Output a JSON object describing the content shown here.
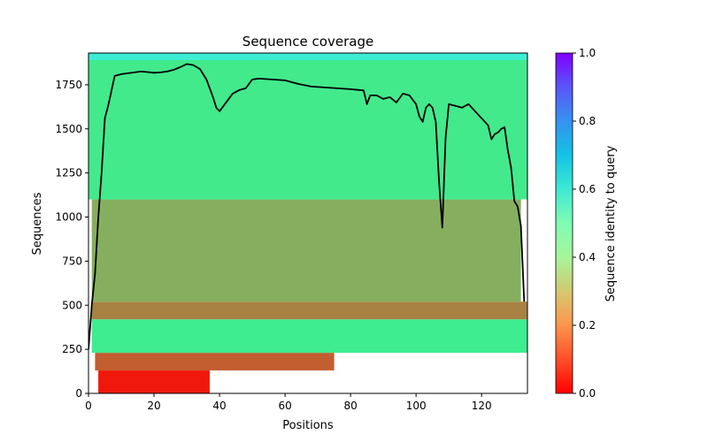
{
  "chart_data": {
    "type": "heatmap",
    "title": "Sequence coverage",
    "xlabel": "Positions",
    "ylabel": "Sequences",
    "xlim": [
      0,
      134
    ],
    "ylim": [
      0,
      1930
    ],
    "x_ticks": [
      0,
      20,
      40,
      60,
      80,
      100,
      120
    ],
    "y_ticks": [
      0,
      250,
      500,
      750,
      1000,
      1250,
      1500,
      1750
    ],
    "x_tick_labels": [
      "0",
      "20",
      "40",
      "60",
      "80",
      "100",
      "120"
    ],
    "y_tick_labels": [
      "0",
      "250",
      "500",
      "750",
      "1000",
      "1250",
      "1500",
      "1750"
    ],
    "colorbar": {
      "label": "Sequence identity to query",
      "range": [
        0.0,
        1.0
      ],
      "ticks": [
        0.0,
        0.2,
        0.4,
        0.6,
        0.8,
        1.0
      ],
      "tick_labels": [
        "0.0",
        "0.2",
        "0.4",
        "0.6",
        "0.8",
        "1.0"
      ],
      "colormap": "rainbow_r"
    },
    "identity_bands": [
      {
        "seq_range": [
          0,
          130
        ],
        "x_range": [
          3,
          37
        ],
        "identity": 0.03
      },
      {
        "seq_range": [
          130,
          230
        ],
        "x_range": [
          2,
          75
        ],
        "identity": 0.12
      },
      {
        "seq_range": [
          230,
          420
        ],
        "x_range": [
          1,
          134
        ],
        "identity": 0.38
      },
      {
        "seq_range": [
          420,
          520
        ],
        "x_range": [
          1,
          134
        ],
        "identity": 0.17
      },
      {
        "seq_range": [
          520,
          1100
        ],
        "x_range": [
          1,
          132
        ],
        "identity": 0.24
      },
      {
        "seq_range": [
          1100,
          1890
        ],
        "x_range": [
          0,
          134
        ],
        "identity": 0.37
      },
      {
        "seq_range": [
          1890,
          1930
        ],
        "x_range": [
          0,
          134
        ],
        "identity": 0.62
      }
    ],
    "series": [
      {
        "x": [
          0,
          1,
          2,
          3,
          4,
          5,
          6,
          8,
          10,
          12,
          14,
          16,
          18,
          20,
          22,
          24,
          26,
          28,
          30,
          32,
          34,
          36,
          38,
          39,
          40,
          42,
          44,
          46,
          48,
          50,
          52,
          56,
          60,
          64,
          68,
          72,
          76,
          80,
          84,
          85,
          86,
          88,
          90,
          92,
          94,
          96,
          98,
          100,
          101,
          102,
          103,
          104,
          105,
          106,
          107,
          108,
          109,
          110,
          112,
          114,
          116,
          118,
          120,
          122,
          123,
          124,
          125,
          126,
          127,
          128,
          129,
          130,
          131,
          132,
          133
        ],
        "values": [
          250,
          500,
          680,
          1000,
          1250,
          1560,
          1630,
          1800,
          1810,
          1815,
          1820,
          1825,
          1822,
          1818,
          1820,
          1825,
          1835,
          1850,
          1868,
          1862,
          1840,
          1780,
          1680,
          1620,
          1600,
          1650,
          1700,
          1720,
          1730,
          1780,
          1785,
          1780,
          1775,
          1755,
          1740,
          1735,
          1730,
          1725,
          1718,
          1640,
          1690,
          1690,
          1670,
          1680,
          1650,
          1700,
          1690,
          1640,
          1570,
          1540,
          1620,
          1640,
          1620,
          1540,
          1200,
          940,
          1450,
          1640,
          1630,
          1620,
          1640,
          1600,
          1560,
          1520,
          1440,
          1470,
          1480,
          1500,
          1510,
          1380,
          1280,
          1090,
          1060,
          950,
          520
        ]
      }
    ]
  }
}
